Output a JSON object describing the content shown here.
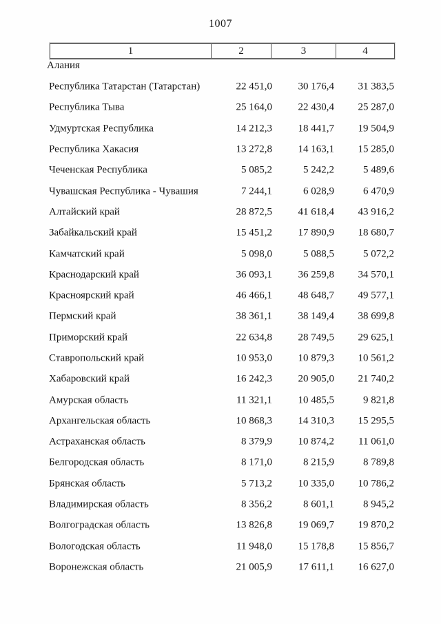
{
  "page": {
    "number": "1007"
  },
  "table": {
    "header": [
      "1",
      "2",
      "3",
      "4"
    ],
    "carryover_label": "Алания",
    "rows": [
      {
        "name": "Республика Татарстан (Татарстан)",
        "c2": "22 451,0",
        "c3": "30 176,4",
        "c4": "31 383,5"
      },
      {
        "name": "Республика Тыва",
        "c2": "25 164,0",
        "c3": "22 430,4",
        "c4": "25 287,0"
      },
      {
        "name": "Удмуртская Республика",
        "c2": "14 212,3",
        "c3": "18 441,7",
        "c4": "19 504,9"
      },
      {
        "name": "Республика Хакасия",
        "c2": "13 272,8",
        "c3": "14 163,1",
        "c4": "15 285,0"
      },
      {
        "name": "Чеченская Республика",
        "c2": "5 085,2",
        "c3": "5 242,2",
        "c4": "5 489,6"
      },
      {
        "name": "Чувашская Республика - Чувашия",
        "c2": "7 244,1",
        "c3": "6 028,9",
        "c4": "6 470,9"
      },
      {
        "name": "Алтайский край",
        "c2": "28 872,5",
        "c3": "41 618,4",
        "c4": "43 916,2"
      },
      {
        "name": "Забайкальский край",
        "c2": "15 451,2",
        "c3": "17 890,9",
        "c4": "18 680,7"
      },
      {
        "name": "Камчатский край",
        "c2": "5 098,0",
        "c3": "5 088,5",
        "c4": "5 072,2"
      },
      {
        "name": "Краснодарский край",
        "c2": "36 093,1",
        "c3": "36 259,8",
        "c4": "34 570,1"
      },
      {
        "name": "Красноярский край",
        "c2": "46 466,1",
        "c3": "48 648,7",
        "c4": "49 577,1"
      },
      {
        "name": "Пермский край",
        "c2": "38 361,1",
        "c3": "38 149,4",
        "c4": "38 699,8"
      },
      {
        "name": "Приморский край",
        "c2": "22 634,8",
        "c3": "28 749,5",
        "c4": "29 625,1"
      },
      {
        "name": "Ставропольский край",
        "c2": "10 953,0",
        "c3": "10 879,3",
        "c4": "10 561,2"
      },
      {
        "name": "Хабаровский край",
        "c2": "16 242,3",
        "c3": "20 905,0",
        "c4": "21 740,2"
      },
      {
        "name": "Амурская область",
        "c2": "11 321,1",
        "c3": "10 485,5",
        "c4": "9 821,8"
      },
      {
        "name": "Архангельская область",
        "c2": "10 868,3",
        "c3": "14 310,3",
        "c4": "15 295,5"
      },
      {
        "name": "Астраханская область",
        "c2": "8 379,9",
        "c3": "10 874,2",
        "c4": "11 061,0"
      },
      {
        "name": "Белгородская область",
        "c2": "8 171,0",
        "c3": "8 215,9",
        "c4": "8 789,8"
      },
      {
        "name": "Брянская область",
        "c2": "5 713,2",
        "c3": "10 335,0",
        "c4": "10 786,2"
      },
      {
        "name": "Владимирская область",
        "c2": "8 356,2",
        "c3": "8 601,1",
        "c4": "8 945,2"
      },
      {
        "name": "Волгоградская область",
        "c2": "13 826,8",
        "c3": "19 069,7",
        "c4": "19 870,2"
      },
      {
        "name": "Вологодская область",
        "c2": "11 948,0",
        "c3": "15 178,8",
        "c4": "15 856,7"
      },
      {
        "name": "Воронежская область",
        "c2": "21 005,9",
        "c3": "17 611,1",
        "c4": "16 627,0"
      }
    ]
  }
}
